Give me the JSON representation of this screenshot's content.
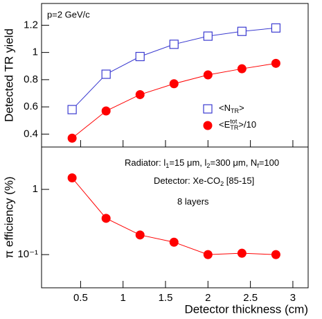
{
  "chart_data": [
    {
      "type": "line",
      "ylabel": "Detected TR yield",
      "x": [
        0.4,
        0.8,
        1.2,
        1.6,
        2.0,
        2.4,
        2.8
      ],
      "xlim": [
        0.04,
        3.18
      ],
      "xticks": [
        0.5,
        1,
        1.5,
        2,
        2.5,
        3
      ],
      "ylim": [
        0.305,
        1.36
      ],
      "yticks": [
        0.4,
        0.6,
        0.8,
        1,
        1.2
      ],
      "legend": "center-right",
      "annotations": [
        "p=2 GeV/c"
      ],
      "series": [
        {
          "name": [
            "<N",
            {
              "sub": "TR"
            },
            ">"
          ],
          "color": "#3a3ad0",
          "marker": "open-square",
          "values": [
            0.58,
            0.84,
            0.97,
            1.06,
            1.12,
            1.155,
            1.18
          ]
        },
        {
          "name": [
            "<E",
            {
              "sup": "tot",
              "sub": "TR"
            },
            ">/10"
          ],
          "color": "#ff0000",
          "marker": "filled-circle",
          "values": [
            0.37,
            0.57,
            0.69,
            0.77,
            0.835,
            0.88,
            0.92
          ]
        }
      ]
    },
    {
      "type": "line",
      "ylabel": "π efficiency (%)",
      "xlabel": "Detector thickness (cm)",
      "x": [
        0.4,
        0.8,
        1.2,
        1.6,
        2.0,
        2.4,
        2.8
      ],
      "xlim": [
        0.04,
        3.18
      ],
      "xticks": [
        0.5,
        1,
        1.5,
        2,
        2.5,
        3
      ],
      "ylim": [
        0.031,
        4.46
      ],
      "yticks": [
        1,
        {
          "value": 0.1,
          "label": "10⁻¹"
        }
      ],
      "log_y": true,
      "annotations": [
        [
          "Radiator: l",
          {
            "sub": "1"
          },
          "=15 μm, l",
          {
            "sub": "2"
          },
          "=300 μm, N",
          {
            "sub": "f"
          },
          "=100"
        ],
        [
          "Detector: Xe-CO",
          {
            "sub": "2"
          },
          " [85-15]"
        ],
        [
          "8 layers"
        ]
      ],
      "series": [
        {
          "color": "#ff0000",
          "marker": "filled-circle",
          "values": [
            1.5,
            0.36,
            0.2,
            0.155,
            0.1,
            0.105,
            0.1
          ]
        }
      ]
    }
  ]
}
